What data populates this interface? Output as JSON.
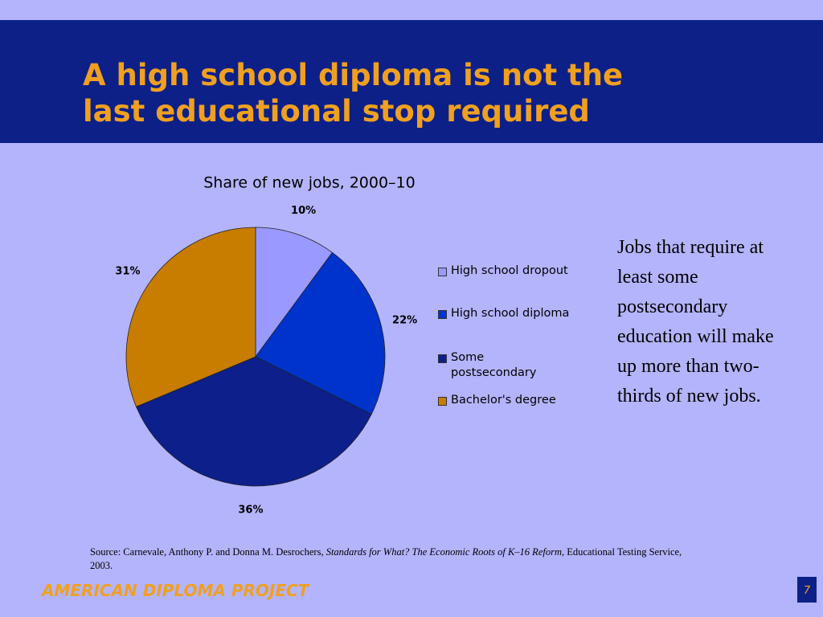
{
  "slide": {
    "title_lines": [
      "A high school diploma is not the",
      "last educational stop required"
    ],
    "side_text": "Jobs that require at least some postsecondary education will make up more than two-thirds of new jobs.",
    "source": {
      "prefix": "Source: Carnevale, Anthony P. and Donna M. Desrochers, ",
      "title": "Standards for What? The Economic Roots of K–16 Reform,",
      "suffix": " Educational Testing Service, 2003."
    },
    "footer": "AMERICAN DIPLOMA PROJECT",
    "page_number": "7"
  },
  "chart_data": {
    "type": "pie",
    "title": "Share of new jobs, 2000–10",
    "categories": [
      "High school dropout",
      "High school diploma",
      "Some postsecondary",
      "Bachelor's degree"
    ],
    "values": [
      10,
      22,
      36,
      31
    ],
    "value_labels": [
      "10%",
      "22%",
      "36%",
      "31%"
    ],
    "colors": [
      "#9999ff",
      "#0033cc",
      "#0d1f8a",
      "#c87d00"
    ]
  }
}
